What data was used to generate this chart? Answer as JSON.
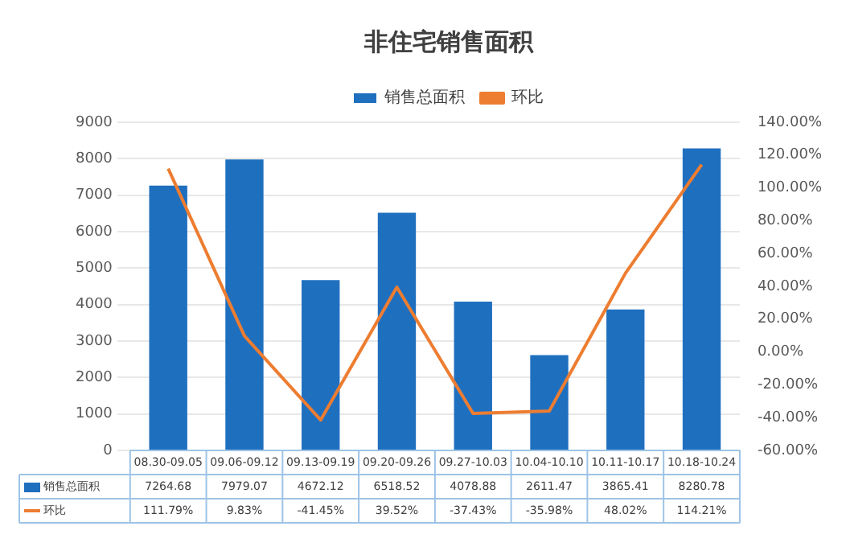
{
  "chart_data": {
    "type": "bar",
    "title": "非住宅销售面积",
    "categories": [
      "08.30-09.05",
      "09.06-09.12",
      "09.13-09.19",
      "09.20-09.26",
      "09.27-10.03",
      "10.04-10.10",
      "10.11-10.17",
      "10.18-10.24"
    ],
    "series": [
      {
        "name": "销售总面积",
        "color": "#1f6fbf",
        "values": [
          7264.68,
          7979.07,
          4672.12,
          6518.52,
          4078.88,
          2611.47,
          3865.41,
          8280.78
        ],
        "value_labels": [
          "7264.68",
          "7979.07",
          "4672.12",
          "6518.52",
          "4078.88",
          "2611.47",
          "3865.41",
          "8280.78"
        ]
      },
      {
        "name": "环比",
        "type": "line",
        "axis": "y2",
        "color": "#ed7d31",
        "values": [
          111.79,
          9.83,
          -41.45,
          39.52,
          -37.43,
          -35.98,
          48.02,
          114.21
        ],
        "value_labels": [
          "111.79%",
          "9.83%",
          "-41.45%",
          "39.52%",
          "-37.43%",
          "-35.98%",
          "48.02%",
          "114.21%"
        ]
      }
    ],
    "ylim": [
      0,
      9000
    ],
    "yticks": [
      0,
      1000,
      2000,
      3000,
      4000,
      5000,
      6000,
      7000,
      8000,
      9000
    ],
    "y2lim": [
      -60,
      140
    ],
    "y2ticks": [
      {
        "value": -60,
        "label": "-60.00%"
      },
      {
        "value": -40,
        "label": "-40.00%"
      },
      {
        "value": -20,
        "label": "-20.00%"
      },
      {
        "value": 0,
        "label": "0.00%"
      },
      {
        "value": 20,
        "label": "20.00%"
      },
      {
        "value": 40,
        "label": "40.00%"
      },
      {
        "value": 60,
        "label": "60.00%"
      },
      {
        "value": 80,
        "label": "80.00%"
      },
      {
        "value": 100,
        "label": "100.00%"
      },
      {
        "value": 120,
        "label": "120.00%"
      },
      {
        "value": 140,
        "label": "140.00%"
      }
    ],
    "grid": "y",
    "legend": "top",
    "marker": "none",
    "line_style": "solid"
  }
}
